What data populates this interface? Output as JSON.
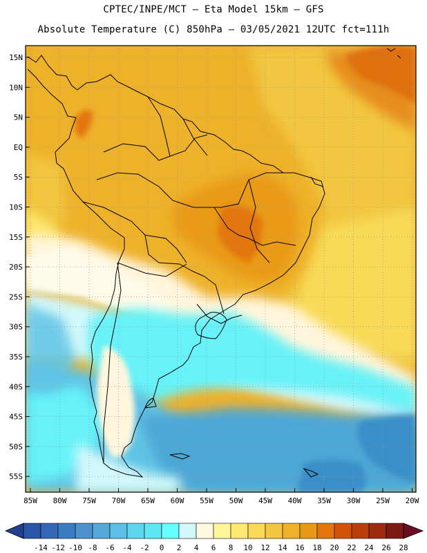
{
  "header": {
    "line1": "CPTEC/INPE/MCT –  Eta Model 15km – GFS",
    "line2": "Absolute Temperature (C) 850hPa – 03/05/2021 12UTC fct=111h"
  },
  "axes": {
    "lat_labels": [
      "15N",
      "10N",
      "5N",
      "EQ",
      "5S",
      "10S",
      "15S",
      "20S",
      "25S",
      "30S",
      "35S",
      "40S",
      "45S",
      "50S",
      "55S"
    ],
    "lon_labels": [
      "85W",
      "80W",
      "75W",
      "70W",
      "65W",
      "60W",
      "55W",
      "50W",
      "45W",
      "40W",
      "35W",
      "30W",
      "25W",
      "20W"
    ]
  },
  "colorbar": {
    "labels": [
      "-14",
      "-12",
      "-10",
      "-8",
      "-6",
      "-4",
      "-2",
      "0",
      "2",
      "4",
      "6",
      "8",
      "10",
      "12",
      "14",
      "16",
      "18",
      "20",
      "22",
      "24",
      "26",
      "28"
    ],
    "colors": [
      "#1f3f8f",
      "#2b56a5",
      "#3468b6",
      "#3c7dc2",
      "#4b91cd",
      "#55a8d8",
      "#5bc0e3",
      "#60d6ee",
      "#5de7f5",
      "#67ffff",
      "#d3f8fb",
      "#fff9df",
      "#fff59a",
      "#fde872",
      "#f8da57",
      "#f2c63f",
      "#eeb12a",
      "#e99a14",
      "#e3760a",
      "#d25208",
      "#b83e0c",
      "#9c2a10",
      "#7b1b14",
      "#6d0c22"
    ]
  },
  "map_colors": {
    "ocean_deep": "#3b8fc8",
    "ocean_mid": "#4ea7d6",
    "ocean_light": "#5fc4e6",
    "cyan": "#66f2f8",
    "pale_cyan": "#d3f8fb",
    "cream": "#fff6dd",
    "yellow": "#fde872",
    "gold": "#f2c63f",
    "orange": "#eeb12a",
    "dark_orange": "#e99a14",
    "red_orange": "#d9660a"
  }
}
